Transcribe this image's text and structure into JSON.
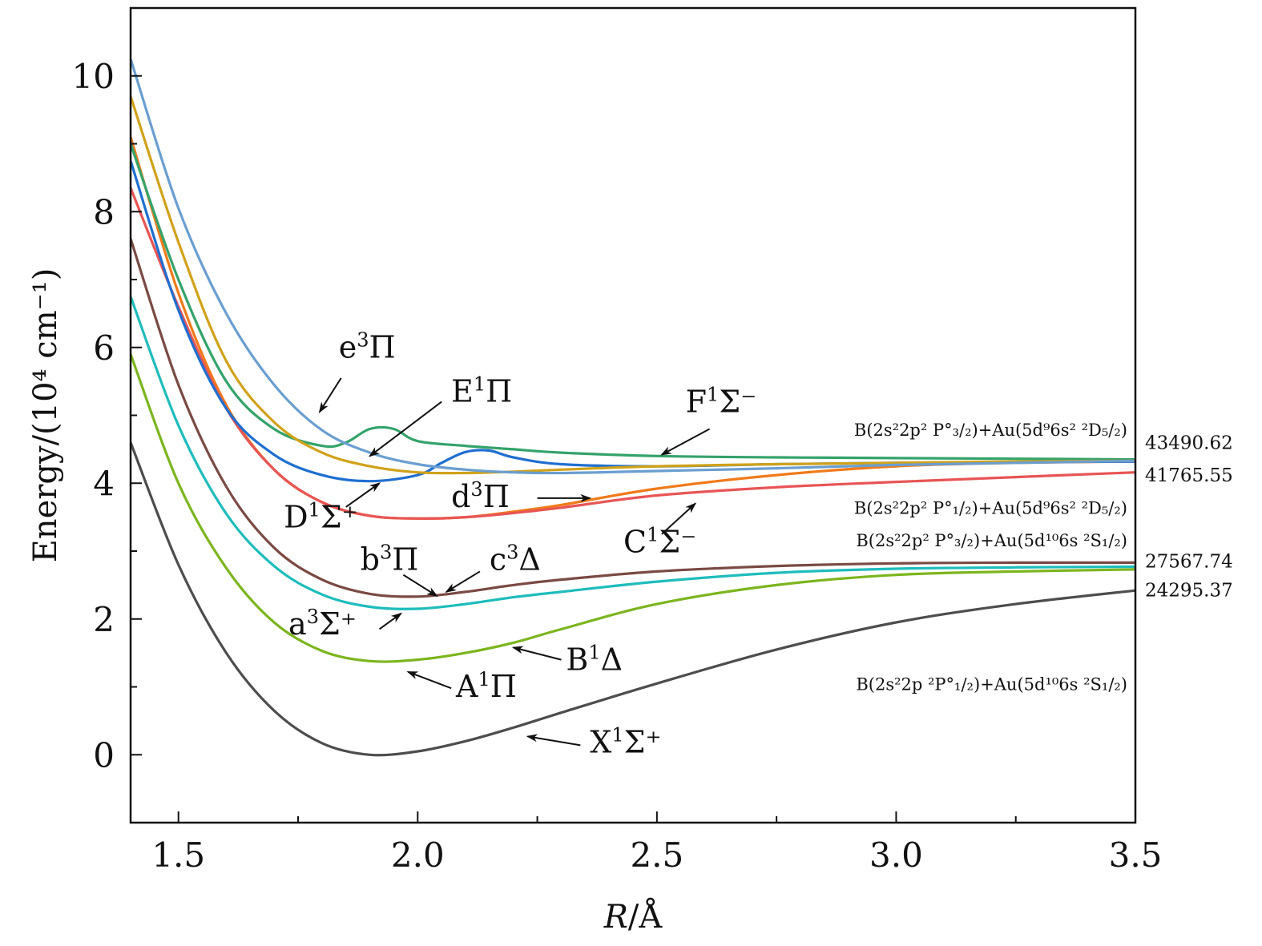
{
  "chart_data": {
    "type": "line",
    "xlabel_italic": "R",
    "xlabel_rest": "/Å",
    "ylabel": "Energy/(10⁴ cm⁻¹)",
    "xlim": [
      1.4,
      3.5
    ],
    "ylim": [
      -1.0,
      11.0
    ],
    "xticks": [
      1.5,
      2.0,
      2.5,
      3.0,
      3.5
    ],
    "xtick_labels": [
      "1.5",
      "2.0",
      "2.5",
      "3.0",
      "3.5"
    ],
    "yticks": [
      0,
      2,
      4,
      6,
      8,
      10
    ],
    "ytick_labels": [
      "0",
      "2",
      "4",
      "6",
      "8",
      "10"
    ],
    "series": [
      {
        "name": "X¹Σ⁺",
        "color": "#4d4d4d",
        "x": [
          1.4,
          1.5,
          1.6,
          1.7,
          1.8,
          1.9,
          2.0,
          2.1,
          2.2,
          2.3,
          2.5,
          2.75,
          3.0,
          3.25,
          3.5
        ],
        "y": [
          4.6,
          2.8,
          1.5,
          0.65,
          0.17,
          0.0,
          0.05,
          0.2,
          0.4,
          0.62,
          1.05,
          1.55,
          1.95,
          2.22,
          2.42
        ]
      },
      {
        "name": "A¹Π",
        "color": "#7cb51e",
        "x": [
          1.4,
          1.5,
          1.6,
          1.7,
          1.8,
          1.9,
          2.0,
          2.1,
          2.2,
          2.3,
          2.5,
          2.75,
          3.0,
          3.25,
          3.5
        ],
        "y": [
          5.9,
          4.0,
          2.75,
          1.95,
          1.53,
          1.38,
          1.4,
          1.5,
          1.65,
          1.85,
          2.22,
          2.5,
          2.65,
          2.7,
          2.73
        ]
      },
      {
        "name": "a³Σ⁺",
        "color": "#1fbcbc",
        "x": [
          1.4,
          1.5,
          1.6,
          1.7,
          1.8,
          1.9,
          2.0,
          2.1,
          2.2,
          2.3,
          2.5,
          2.75,
          3.0,
          3.25,
          3.5
        ],
        "y": [
          6.75,
          4.85,
          3.55,
          2.78,
          2.36,
          2.18,
          2.15,
          2.22,
          2.32,
          2.4,
          2.55,
          2.68,
          2.74,
          2.76,
          2.77
        ]
      },
      {
        "name": "b³Π",
        "color": "#7a4a44",
        "x": [
          1.4,
          1.5,
          1.6,
          1.7,
          1.8,
          1.9,
          2.0,
          2.1,
          2.2,
          2.3,
          2.5,
          2.75,
          3.0,
          3.25,
          3.5
        ],
        "y": [
          7.6,
          5.45,
          3.95,
          3.05,
          2.58,
          2.37,
          2.33,
          2.4,
          2.5,
          2.58,
          2.7,
          2.78,
          2.82,
          2.83,
          2.83
        ]
      },
      {
        "name": "d³Π",
        "color": "#f07a1a",
        "x": [
          1.4,
          1.5,
          1.6,
          1.7,
          1.8,
          1.9,
          2.0,
          2.1,
          2.2,
          2.3,
          2.5,
          2.75,
          3.0,
          3.25,
          3.5
        ],
        "y": [
          9.1,
          6.8,
          5.15,
          4.2,
          3.72,
          3.52,
          3.48,
          3.5,
          3.58,
          3.68,
          3.92,
          4.12,
          4.25,
          4.3,
          4.32
        ]
      },
      {
        "name": "C¹Σ⁻",
        "color": "#e85555",
        "x": [
          1.4,
          1.5,
          1.6,
          1.7,
          1.8,
          1.9,
          2.0,
          2.1,
          2.2,
          2.3,
          2.5,
          2.75,
          3.0,
          3.25,
          3.5
        ],
        "y": [
          8.35,
          6.6,
          5.1,
          4.2,
          3.72,
          3.52,
          3.48,
          3.5,
          3.56,
          3.64,
          3.82,
          3.94,
          4.02,
          4.09,
          4.16
        ]
      },
      {
        "name": "D¹Σ⁺ / E¹Π",
        "color": "#1f6fd0",
        "x": [
          1.4,
          1.5,
          1.6,
          1.7,
          1.8,
          1.9,
          2.0,
          2.05,
          2.1,
          2.15,
          2.2,
          2.3,
          2.5,
          2.75,
          3.0,
          3.25,
          3.5
        ],
        "y": [
          8.75,
          6.55,
          5.1,
          4.42,
          4.12,
          4.03,
          4.12,
          4.3,
          4.46,
          4.48,
          4.38,
          4.28,
          4.25,
          4.28,
          4.3,
          4.31,
          4.32
        ]
      },
      {
        "name": "F¹Σ⁻",
        "color": "#34a36a",
        "x": [
          1.4,
          1.5,
          1.6,
          1.7,
          1.8,
          1.85,
          1.9,
          1.95,
          2.0,
          2.1,
          2.2,
          2.3,
          2.5,
          2.75,
          3.0,
          3.25,
          3.5
        ],
        "y": [
          9.0,
          7.0,
          5.5,
          4.8,
          4.55,
          4.6,
          4.8,
          4.8,
          4.62,
          4.55,
          4.5,
          4.45,
          4.4,
          4.38,
          4.37,
          4.36,
          4.35
        ]
      },
      {
        "name": "yellow",
        "color": "#d0a21a",
        "x": [
          1.4,
          1.5,
          1.6,
          1.7,
          1.8,
          1.9,
          2.0,
          2.1,
          2.2,
          2.3,
          2.5,
          2.75,
          3.0,
          3.25,
          3.5
        ],
        "y": [
          9.7,
          7.55,
          5.8,
          4.9,
          4.45,
          4.25,
          4.16,
          4.15,
          4.17,
          4.2,
          4.25,
          4.28,
          4.3,
          4.32,
          4.33
        ]
      },
      {
        "name": "e³Π",
        "color": "#6a9ed0",
        "x": [
          1.4,
          1.5,
          1.6,
          1.7,
          1.8,
          1.9,
          2.0,
          2.1,
          2.2,
          2.3,
          2.5,
          2.75,
          3.0,
          3.25,
          3.5
        ],
        "y": [
          10.25,
          8.05,
          6.5,
          5.45,
          4.78,
          4.45,
          4.28,
          4.2,
          4.16,
          4.15,
          4.18,
          4.22,
          4.27,
          4.3,
          4.33
        ]
      }
    ],
    "annotations": [
      {
        "id": "e3pi",
        "text_main": "e",
        "sup": "3",
        "text_rest": "Π",
        "tx": 1.835,
        "ty": 5.85,
        "ax1": 1.84,
        "ay1": 5.55,
        "ax2": 1.795,
        "ay2": 5.05
      },
      {
        "id": "E1pi",
        "text_main": "E",
        "sup": "1",
        "text_rest": "Π",
        "tx": 2.07,
        "ty": 5.2,
        "ax1": 2.05,
        "ay1": 5.2,
        "ax2": 1.9,
        "ay2": 4.4
      },
      {
        "id": "F1sigm",
        "text_main": "F",
        "sup": "1",
        "text_rest": "Σ⁻",
        "tx": 2.56,
        "ty": 5.05,
        "ax1": 2.61,
        "ay1": 4.8,
        "ax2": 2.51,
        "ay2": 4.42
      },
      {
        "id": "D1sigp",
        "text_main": "D",
        "sup": "1",
        "text_rest": "Σ⁺",
        "tx": 1.72,
        "ty": 3.35,
        "ax1": 1.85,
        "ay1": 3.65,
        "ax2": 1.92,
        "ay2": 4.0
      },
      {
        "id": "d3pi",
        "text_main": "d",
        "sup": "3",
        "text_rest": "Π",
        "tx": 2.07,
        "ty": 3.65,
        "ax1": 2.25,
        "ay1": 3.78,
        "ax2": 2.36,
        "ay2": 3.78
      },
      {
        "id": "C1sigm",
        "text_main": "C",
        "sup": "1",
        "text_rest": "Σ⁻",
        "tx": 2.43,
        "ty": 2.98,
        "ax1": 2.51,
        "ay1": 3.25,
        "ax2": 2.58,
        "ay2": 3.7
      },
      {
        "id": "b3pi",
        "text_main": "b",
        "sup": "3",
        "text_rest": "Π",
        "tx": 1.88,
        "ty": 2.72,
        "ax1": 1.97,
        "ay1": 2.65,
        "ax2": 2.04,
        "ay2": 2.34
      },
      {
        "id": "c3delta",
        "text_main": "c",
        "sup": "3",
        "text_rest": "Δ",
        "tx": 2.15,
        "ty": 2.72,
        "ax1": 2.13,
        "ay1": 2.7,
        "ax2": 2.06,
        "ay2": 2.4
      },
      {
        "id": "a3sigp",
        "text_main": "a",
        "sup": "3",
        "text_rest": "Σ⁺",
        "tx": 1.73,
        "ty": 1.77,
        "ax1": 1.92,
        "ay1": 1.85,
        "ax2": 1.965,
        "ay2": 2.08
      },
      {
        "id": "B1delta",
        "text_main": "B",
        "sup": "1",
        "text_rest": "Δ",
        "tx": 2.31,
        "ty": 1.25,
        "ax1": 2.3,
        "ay1": 1.4,
        "ax2": 2.2,
        "ay2": 1.58
      },
      {
        "id": "A1pi",
        "text_main": "A",
        "sup": "1",
        "text_rest": "Π",
        "tx": 2.08,
        "ty": 0.85,
        "ax1": 2.07,
        "ay1": 0.98,
        "ax2": 1.98,
        "ay2": 1.22
      },
      {
        "id": "X1sigp",
        "text_main": "X",
        "sup": "1",
        "text_rest": "Σ⁺",
        "tx": 2.36,
        "ty": 0.03,
        "ax1": 2.34,
        "ay1": 0.14,
        "ax2": 2.23,
        "ay2": 0.27
      }
    ],
    "asymptotes": [
      {
        "id": "asym1",
        "text": "B(2s²2p² P°₃/₂)+Au(5d⁹6s² ²D₅/₂)",
        "y": 4.7
      },
      {
        "id": "asym2",
        "text": "B(2s²2p² P°₁/₂)+Au(5d⁹6s² ²D₅/₂)",
        "y": 3.55
      },
      {
        "id": "asym3",
        "text": "B(2s²2p² P°₃/₂)+Au(5d¹⁰6s ²S₁/₂)",
        "y": 3.07
      },
      {
        "id": "asym4",
        "text": "B(2s²2p ²P°₁/₂)+Au(5d¹⁰6s ²S₁/₂)",
        "y": 0.95
      }
    ],
    "energy_labels": [
      {
        "id": "e1",
        "text": "43490.62",
        "y": 4.6
      },
      {
        "id": "e2",
        "text": "41765.55",
        "y": 4.12
      },
      {
        "id": "e3",
        "text": "27567.74",
        "y": 2.85
      },
      {
        "id": "e4",
        "text": "24295.37",
        "y": 2.43
      }
    ]
  }
}
